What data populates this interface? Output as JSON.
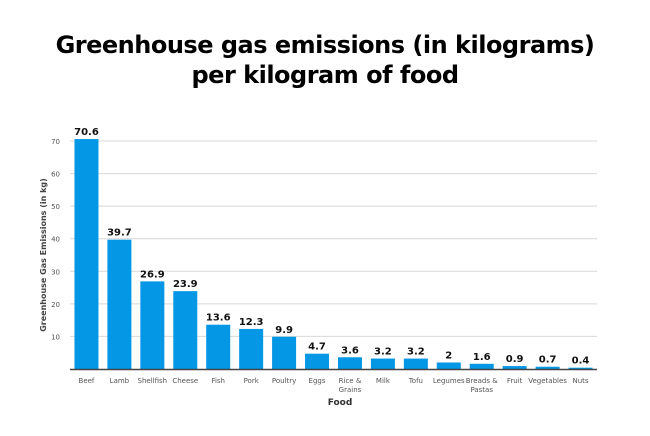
{
  "chart_data": {
    "type": "bar",
    "title_line1": "Greenhouse gas emissions (in kilograms)",
    "title_line2": "per kilogram of food",
    "xlabel": "Food",
    "ylabel": "Greenhouse Gas Emissions (in kg)",
    "ylim": [
      0,
      70
    ],
    "yticks": [
      10,
      20,
      30,
      40,
      50,
      60,
      70
    ],
    "grid": true,
    "bar_color": "#0497e6",
    "categories": [
      "Beef",
      "Lamb",
      "Shellfish",
      "Cheese",
      "Fish",
      "Pork",
      "Poultry",
      "Eggs",
      "Rice & Grains",
      "Milk",
      "Tofu",
      "Legumes",
      "Breads & Pastas",
      "Fruit",
      "Vegetables",
      "Nuts"
    ],
    "category_lines": [
      [
        "Beef"
      ],
      [
        "Lamb"
      ],
      [
        "Shellfish"
      ],
      [
        "Cheese"
      ],
      [
        "Fish"
      ],
      [
        "Pork"
      ],
      [
        "Poultry"
      ],
      [
        "Eggs"
      ],
      [
        "Rice &",
        "Grains"
      ],
      [
        "Milk"
      ],
      [
        "Tofu"
      ],
      [
        "Legumes"
      ],
      [
        "Breads &",
        "Pastas"
      ],
      [
        "Fruit"
      ],
      [
        "Vegetables"
      ],
      [
        "Nuts"
      ]
    ],
    "values": [
      70.6,
      39.7,
      26.9,
      23.9,
      13.6,
      12.3,
      9.9,
      4.7,
      3.6,
      3.2,
      3.2,
      2,
      1.6,
      0.9,
      0.7,
      0.4
    ],
    "data_labels": [
      "70.6",
      "39.7",
      "26.9",
      "23.9",
      "13.6",
      "12.3",
      "9.9",
      "4.7",
      "3.6",
      "3.2",
      "3.2",
      "2",
      "1.6",
      "0.9",
      "0.7",
      "0.4"
    ]
  }
}
